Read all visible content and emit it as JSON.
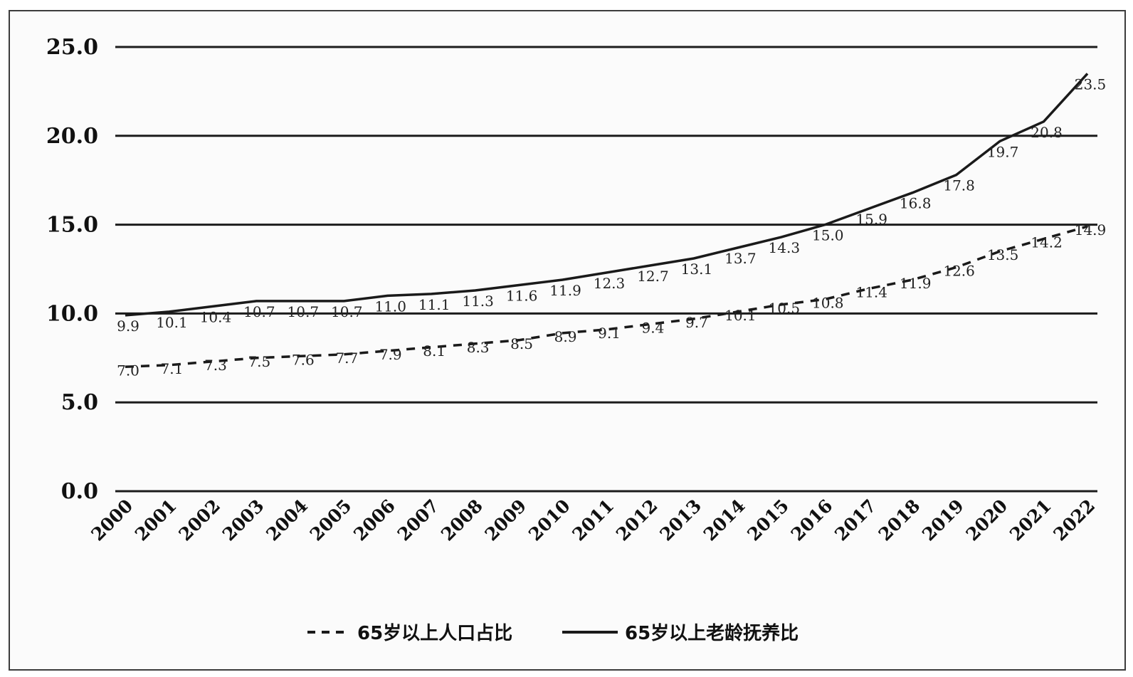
{
  "chart_data": {
    "type": "line",
    "title": "",
    "xlabel": "",
    "ylabel": "",
    "x": [
      "2000",
      "2001",
      "2002",
      "2003",
      "2004",
      "2005",
      "2006",
      "2007",
      "2008",
      "2009",
      "2010",
      "2011",
      "2012",
      "2013",
      "2014",
      "2015",
      "2016",
      "2017",
      "2018",
      "2019",
      "2020",
      "2021",
      "2022"
    ],
    "ylim": [
      0,
      25
    ],
    "yticks": [
      "0.0",
      "5.0",
      "10.0",
      "15.0",
      "20.0",
      "25.0"
    ],
    "grid": true,
    "legend_position": "bottom",
    "series": [
      {
        "name": "65岁以上人口占比",
        "style": "dashed",
        "color": "#1a1a1a",
        "values": [
          7.0,
          7.1,
          7.3,
          7.5,
          7.6,
          7.7,
          7.9,
          8.1,
          8.3,
          8.5,
          8.9,
          9.1,
          9.4,
          9.7,
          10.1,
          10.5,
          10.8,
          11.4,
          11.9,
          12.6,
          13.5,
          14.2,
          14.9
        ],
        "labels": [
          "7.0",
          "7.1",
          "7.3",
          "7.5",
          "7.6",
          "7.7",
          "7.9",
          "8.1",
          "8.3",
          "8.5",
          "8.9",
          "9.1",
          "9.4",
          "9.7",
          "10.1",
          "10.5",
          "10.8",
          "11.4",
          "11.9",
          "12.6",
          "13.5",
          "14.2",
          "14.9"
        ]
      },
      {
        "name": "65岁以上老龄抚养比",
        "style": "solid",
        "color": "#1a1a1a",
        "values": [
          9.9,
          10.1,
          10.4,
          10.7,
          10.7,
          10.7,
          11.0,
          11.1,
          11.3,
          11.6,
          11.9,
          12.3,
          12.7,
          13.1,
          13.7,
          14.3,
          15.0,
          15.9,
          16.8,
          17.8,
          19.7,
          20.8,
          23.5
        ],
        "labels": [
          "9.9",
          "10.1",
          "10.4",
          "10.7",
          "10.7",
          "10.7",
          "11.0",
          "11.1",
          "11.3",
          "11.6",
          "11.9",
          "12.3",
          "12.7",
          "13.1",
          "13.7",
          "14.3",
          "15.0",
          "15.9",
          "16.8",
          "17.8",
          "19.7",
          "20.8",
          "23.5"
        ]
      }
    ]
  }
}
